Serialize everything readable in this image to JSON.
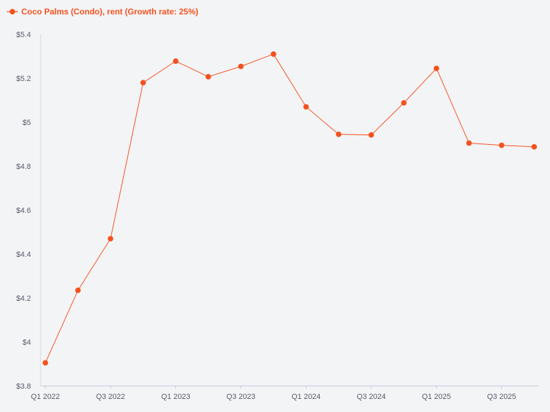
{
  "chart_data": {
    "type": "line",
    "title": "",
    "xlabel": "",
    "ylabel": "",
    "legend_position": "top-left",
    "grid": false,
    "x_tick_labels": [
      "Q1 2022",
      "Q3 2022",
      "Q1 2023",
      "Q3 2023",
      "Q1 2024",
      "Q3 2024",
      "Q1 2025",
      "Q3 2025"
    ],
    "y_tick_labels": [
      "$3.8",
      "$4",
      "$4.2",
      "$4.4",
      "$4.6",
      "$4.8",
      "$5",
      "$5.2",
      "$5.4"
    ],
    "y_ticks": [
      3.8,
      4.0,
      4.2,
      4.4,
      4.6,
      4.8,
      5.0,
      5.2,
      5.4
    ],
    "ylim": [
      3.8,
      5.4
    ],
    "categories": [
      "Q1 2022",
      "Q2 2022",
      "Q3 2022",
      "Q4 2022",
      "Q1 2023",
      "Q2 2023",
      "Q3 2023",
      "Q4 2023",
      "Q1 2024",
      "Q2 2024",
      "Q3 2024",
      "Q4 2024",
      "Q1 2025",
      "Q2 2025",
      "Q3 2025",
      "Q4 2025"
    ],
    "series": [
      {
        "name": "Coco Palms (Condo), rent (Growth rate: 25%)",
        "color": "#f4511e",
        "values": [
          3.905,
          4.235,
          4.47,
          5.18,
          5.278,
          5.207,
          5.254,
          5.31,
          5.07,
          4.945,
          4.942,
          5.088,
          5.245,
          4.905,
          4.895,
          4.888
        ]
      }
    ]
  }
}
